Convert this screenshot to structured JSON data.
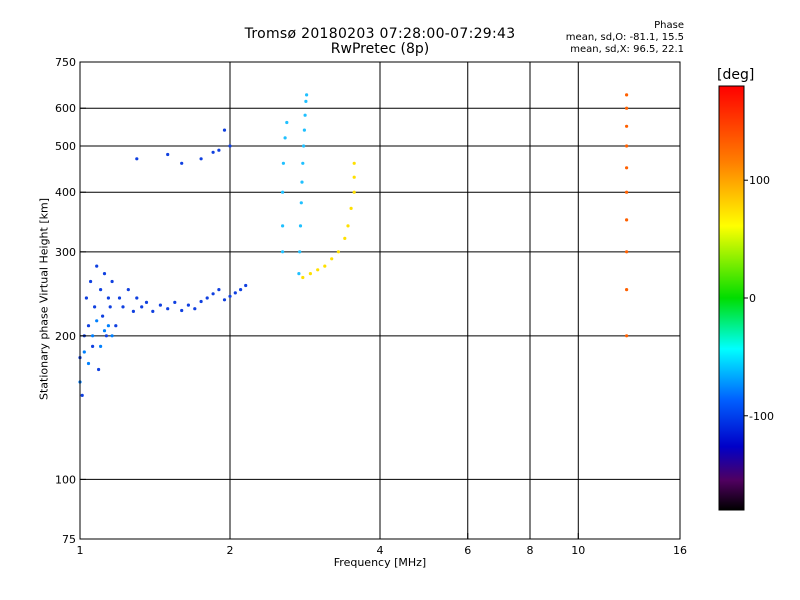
{
  "chart_data": {
    "type": "scatter",
    "title": "Tromsø 20180203 07:28:00-07:29:43",
    "subtitle": "RwPretec (8p)",
    "xlabel": "Frequency [MHz]",
    "ylabel": "Stationary phase Virtual Height [km]",
    "x_scale": "log",
    "y_scale": "log",
    "xlim": [
      1,
      16
    ],
    "ylim": [
      75,
      750
    ],
    "x_ticks": [
      1,
      2,
      4,
      6,
      8,
      10,
      16
    ],
    "x_tick_labels": [
      "1",
      "2",
      "4",
      "6",
      "8",
      "10",
      "16"
    ],
    "y_ticks": [
      75,
      100,
      200,
      300,
      400,
      500,
      600,
      750
    ],
    "y_tick_labels": [
      "75",
      "100",
      "200",
      "300",
      "400",
      "500",
      "600",
      "750"
    ],
    "x_gridlines": [
      2,
      4,
      6,
      8,
      10
    ],
    "y_gridlines": [
      100,
      200,
      300,
      400,
      500,
      600
    ],
    "grid": true,
    "phase_stats": {
      "title": "Phase",
      "o_line": "mean, sd,O: -81.1, 15.5",
      "x_line": "mean, sd,X:  96.5, 22.1"
    },
    "colorbar": {
      "unit": "[deg]",
      "range": [
        -180,
        180
      ],
      "ticks": [
        100,
        0,
        -100
      ],
      "tick_labels": [
        "100",
        "0",
        "-100"
      ],
      "colors": [
        "#ff0000",
        "#ff7f00",
        "#ffff00",
        "#00dd00",
        "#00ffff",
        "#0060ff",
        "#0000c8",
        "#500060",
        "#000000"
      ]
    },
    "series": [
      {
        "name": "",
        "color": "#1040e0",
        "phase": -95,
        "points": [
          [
            1.0,
            180
          ],
          [
            1.01,
            150
          ],
          [
            1.02,
            200
          ],
          [
            1.03,
            240
          ],
          [
            1.04,
            210
          ],
          [
            1.05,
            260
          ],
          [
            1.06,
            190
          ],
          [
            1.07,
            230
          ],
          [
            1.08,
            280
          ],
          [
            1.09,
            170
          ],
          [
            1.1,
            250
          ],
          [
            1.11,
            220
          ],
          [
            1.12,
            270
          ],
          [
            1.13,
            200
          ],
          [
            1.14,
            240
          ],
          [
            1.15,
            230
          ],
          [
            1.16,
            260
          ],
          [
            1.18,
            210
          ],
          [
            1.2,
            240
          ],
          [
            1.22,
            230
          ],
          [
            1.25,
            250
          ],
          [
            1.28,
            225
          ],
          [
            1.3,
            240
          ],
          [
            1.33,
            230
          ],
          [
            1.36,
            235
          ],
          [
            1.4,
            225
          ],
          [
            1.45,
            232
          ],
          [
            1.5,
            228
          ],
          [
            1.55,
            235
          ],
          [
            1.6,
            226
          ],
          [
            1.65,
            232
          ],
          [
            1.7,
            228
          ],
          [
            1.75,
            236
          ],
          [
            1.8,
            240
          ],
          [
            1.85,
            245
          ],
          [
            1.9,
            250
          ],
          [
            1.95,
            238
          ],
          [
            2.0,
            242
          ],
          [
            2.05,
            246
          ],
          [
            2.1,
            250
          ],
          [
            2.15,
            255
          ],
          [
            1.3,
            470
          ],
          [
            1.5,
            480
          ],
          [
            1.6,
            460
          ],
          [
            1.75,
            470
          ],
          [
            1.85,
            485
          ],
          [
            1.9,
            490
          ],
          [
            2.0,
            500
          ],
          [
            1.95,
            540
          ]
        ]
      },
      {
        "name": "",
        "color": "#0080ff",
        "phase": -60,
        "points": [
          [
            1.0,
            160
          ],
          [
            1.02,
            185
          ],
          [
            1.04,
            175
          ],
          [
            1.06,
            200
          ],
          [
            1.08,
            215
          ],
          [
            1.1,
            190
          ],
          [
            1.12,
            205
          ],
          [
            1.14,
            210
          ],
          [
            1.16,
            200
          ]
        ]
      },
      {
        "name": "",
        "color": "#20c0ff",
        "phase": -45,
        "points": [
          [
            2.55,
            300
          ],
          [
            2.55,
            340
          ],
          [
            2.55,
            400
          ],
          [
            2.56,
            460
          ],
          [
            2.58,
            520
          ],
          [
            2.6,
            560
          ],
          [
            2.75,
            270
          ],
          [
            2.76,
            300
          ],
          [
            2.77,
            340
          ],
          [
            2.78,
            380
          ],
          [
            2.79,
            420
          ],
          [
            2.8,
            460
          ],
          [
            2.81,
            500
          ],
          [
            2.82,
            540
          ],
          [
            2.83,
            580
          ],
          [
            2.84,
            620
          ],
          [
            2.85,
            640
          ]
        ]
      },
      {
        "name": "",
        "color": "#ffe000",
        "phase": 105,
        "points": [
          [
            2.8,
            265
          ],
          [
            2.9,
            270
          ],
          [
            3.0,
            275
          ],
          [
            3.1,
            280
          ],
          [
            3.2,
            290
          ],
          [
            3.3,
            300
          ],
          [
            3.4,
            320
          ],
          [
            3.45,
            340
          ],
          [
            3.5,
            370
          ],
          [
            3.55,
            400
          ],
          [
            3.55,
            430
          ],
          [
            3.55,
            460
          ]
        ]
      },
      {
        "name": "",
        "color": "#ff6000",
        "phase": 150,
        "points": [
          [
            12.5,
            200
          ],
          [
            12.5,
            250
          ],
          [
            12.5,
            300
          ],
          [
            12.5,
            350
          ],
          [
            12.5,
            400
          ],
          [
            12.5,
            450
          ],
          [
            12.5,
            500
          ],
          [
            12.5,
            550
          ],
          [
            12.5,
            600
          ],
          [
            12.5,
            640
          ]
        ]
      }
    ]
  }
}
